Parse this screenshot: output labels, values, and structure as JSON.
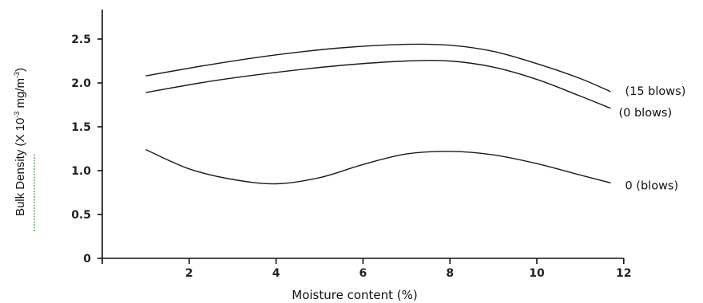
{
  "chart_data": {
    "type": "line",
    "title": "",
    "xlabel": "Moisture content (%)",
    "ylabel": {
      "main": "Bulk Density (X 10",
      "sup1": "-3",
      "mid": " mg/m",
      "sup2": "-3",
      "end": ")"
    },
    "xlim": [
      0,
      12
    ],
    "ylim": [
      0,
      2.8
    ],
    "xticks": [
      0,
      2,
      4,
      6,
      8,
      10,
      12
    ],
    "xtick_labels": [
      "",
      "2",
      "4",
      "6",
      "8",
      "10",
      "12"
    ],
    "yticks": [
      0,
      0.5,
      1.0,
      1.5,
      2.0,
      2.5
    ],
    "ytick_labels": [
      "0",
      "0.5",
      "1.0",
      "1.5",
      "2.0",
      "2.5"
    ],
    "grid": false,
    "series": [
      {
        "name": "(15 blows)",
        "x": [
          1.0,
          2.5,
          4.0,
          5.5,
          7.0,
          8.0,
          9.0,
          10.0,
          11.0,
          11.7
        ],
        "y": [
          2.08,
          2.21,
          2.32,
          2.4,
          2.44,
          2.43,
          2.36,
          2.22,
          2.05,
          1.9
        ]
      },
      {
        "name": "(0 blows)",
        "x": [
          1.0,
          2.5,
          4.0,
          5.5,
          7.0,
          8.0,
          9.0,
          10.0,
          11.0,
          11.7
        ],
        "y": [
          1.89,
          2.02,
          2.12,
          2.2,
          2.25,
          2.25,
          2.18,
          2.04,
          1.85,
          1.71
        ]
      },
      {
        "name": "0 (blows)",
        "x": [
          1.0,
          2.0,
          3.0,
          4.0,
          5.0,
          6.0,
          7.0,
          8.0,
          9.0,
          10.0,
          11.0,
          11.7
        ],
        "y": [
          1.24,
          1.02,
          0.9,
          0.85,
          0.92,
          1.07,
          1.19,
          1.22,
          1.18,
          1.08,
          0.95,
          0.86
        ]
      }
    ]
  }
}
